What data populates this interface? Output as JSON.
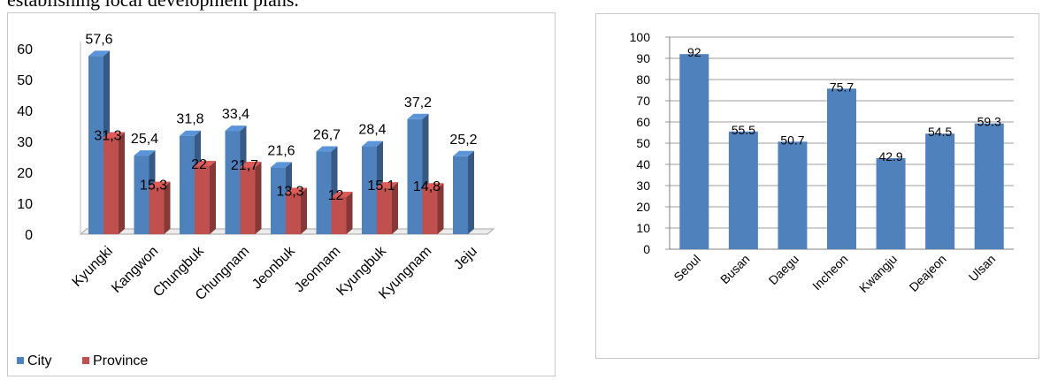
{
  "caption": "establishing local development plans.",
  "chart_data": [
    {
      "type": "bar",
      "categories": [
        "Kyungki",
        "Kangwon",
        "Chungbuk",
        "Chungnam",
        "Jeonbuk",
        "Jeonnam",
        "Kyungbuk",
        "Kyungnam",
        "Jeju"
      ],
      "series": [
        {
          "name": "City",
          "values": [
            57.6,
            25.4,
            31.8,
            33.4,
            21.6,
            26.7,
            28.4,
            37.2,
            25.2
          ],
          "labels": [
            "57,6",
            "25,4",
            "31,8",
            "33,4",
            "21,6",
            "26,7",
            "28,4",
            "37,2",
            "25,2"
          ],
          "color": "#4f81bd"
        },
        {
          "name": "Province",
          "values": [
            31.3,
            15.3,
            22,
            21.7,
            13.3,
            12,
            15.1,
            14.8,
            null
          ],
          "labels": [
            "31,3",
            "15,3",
            "22",
            "21,7",
            "13,3",
            "12",
            "15,1",
            "14,8",
            ""
          ],
          "color": "#c0504d"
        }
      ],
      "yticks": [
        "0",
        "10",
        "20",
        "30",
        "40",
        "50",
        "60"
      ],
      "ylim": [
        0,
        60
      ],
      "legend": "bottom-left",
      "grid": false
    },
    {
      "type": "bar",
      "categories": [
        "Seoul",
        "Busan",
        "Daegu",
        "Incheon",
        "Kwangju",
        "Deajeon",
        "Ulsan"
      ],
      "values": [
        92,
        55.5,
        50.7,
        75.7,
        42.9,
        54.5,
        59.3
      ],
      "labels": [
        "92",
        "55.5",
        "50.7",
        "75.7",
        "42.9",
        "54.5",
        "59.3"
      ],
      "color": "#4f81bd",
      "yticks": [
        "0",
        "10",
        "20",
        "30",
        "40",
        "50",
        "60",
        "70",
        "80",
        "90",
        "100"
      ],
      "ylim": [
        0,
        100
      ],
      "grid": true
    }
  ]
}
